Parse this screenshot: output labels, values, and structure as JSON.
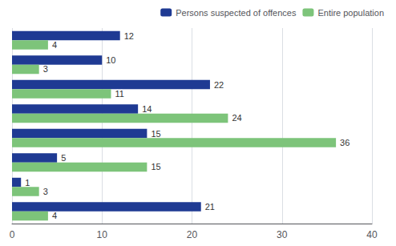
{
  "chart_data": {
    "type": "bar",
    "orientation": "horizontal",
    "categories": [
      null,
      null,
      null,
      null,
      null,
      null,
      null,
      null
    ],
    "series": [
      {
        "name": "Persons suspected of offences",
        "color": "#1f3a93",
        "values": [
          12,
          10,
          22,
          14,
          15,
          5,
          1,
          21
        ]
      },
      {
        "name": "Entire population",
        "color": "#7dc47a",
        "values": [
          4,
          3,
          11,
          24,
          36,
          15,
          3,
          4
        ]
      }
    ],
    "xlim": [
      0,
      40
    ],
    "xticks": [
      0,
      10,
      20,
      30,
      40
    ],
    "grid": true,
    "legend": "upper right",
    "data_labels": true,
    "tick_labels": "x"
  }
}
